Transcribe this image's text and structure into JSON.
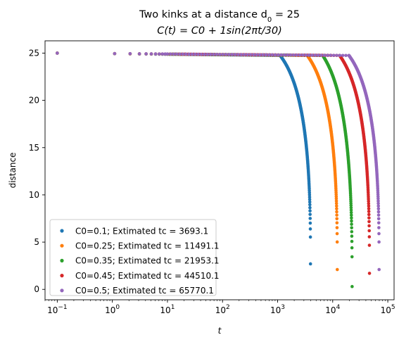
{
  "chart_data": {
    "type": "scatter",
    "title_line1": "Two kinks at a distance d",
    "title_d_sub": "0",
    "title_line1_tail": " = 25",
    "title_line2": "C(t) = C0 + 1sin(2πt/30)",
    "xlabel": "t",
    "ylabel": "distance",
    "xscale": "log",
    "xlim": [
      0.06,
      130000
    ],
    "ylim": [
      -1.1,
      26.3
    ],
    "x_ticks": [
      {
        "value": 0.1,
        "base": "10",
        "exp": "−1"
      },
      {
        "value": 1,
        "base": "10",
        "exp": "0"
      },
      {
        "value": 10,
        "base": "10",
        "exp": "1"
      },
      {
        "value": 100,
        "base": "10",
        "exp": "2"
      },
      {
        "value": 1000,
        "base": "10",
        "exp": "3"
      },
      {
        "value": 10000,
        "base": "10",
        "exp": "4"
      },
      {
        "value": 100000,
        "base": "10",
        "exp": "5"
      }
    ],
    "y_ticks": [
      {
        "value": 0,
        "label": "0"
      },
      {
        "value": 5,
        "label": "5"
      },
      {
        "value": 10,
        "label": "10"
      },
      {
        "value": 15,
        "label": "15"
      },
      {
        "value": 20,
        "label": "20"
      },
      {
        "value": 25,
        "label": "25"
      }
    ],
    "legend_position": "lower-left",
    "grid": false,
    "series": [
      {
        "name": "C0=0.1; Extimated tc = 3693.1",
        "color": "#1f77b4",
        "tc": 3693.1,
        "tEnd": 3950,
        "yEnd": 2.7
      },
      {
        "name": "C0=0.25; Extimated tc = 11491.1",
        "color": "#ff7f0e",
        "tc": 11491.1,
        "tEnd": 12100,
        "yEnd": 2.1
      },
      {
        "name": "C0=0.35; Extimated tc = 21953.1",
        "color": "#2ca02c",
        "tc": 21953.1,
        "tEnd": 22500,
        "yEnd": 0.3
      },
      {
        "name": "C0=0.45; Extimated tc = 44510.1",
        "color": "#d62728",
        "tc": 44510.1,
        "tEnd": 46500,
        "yEnd": 1.7
      },
      {
        "name": "C0=0.5; Extimated tc = 65770.1",
        "color": "#9467bd",
        "tc": 65770.1,
        "tEnd": 69500,
        "yEnd": 2.1
      }
    ]
  }
}
